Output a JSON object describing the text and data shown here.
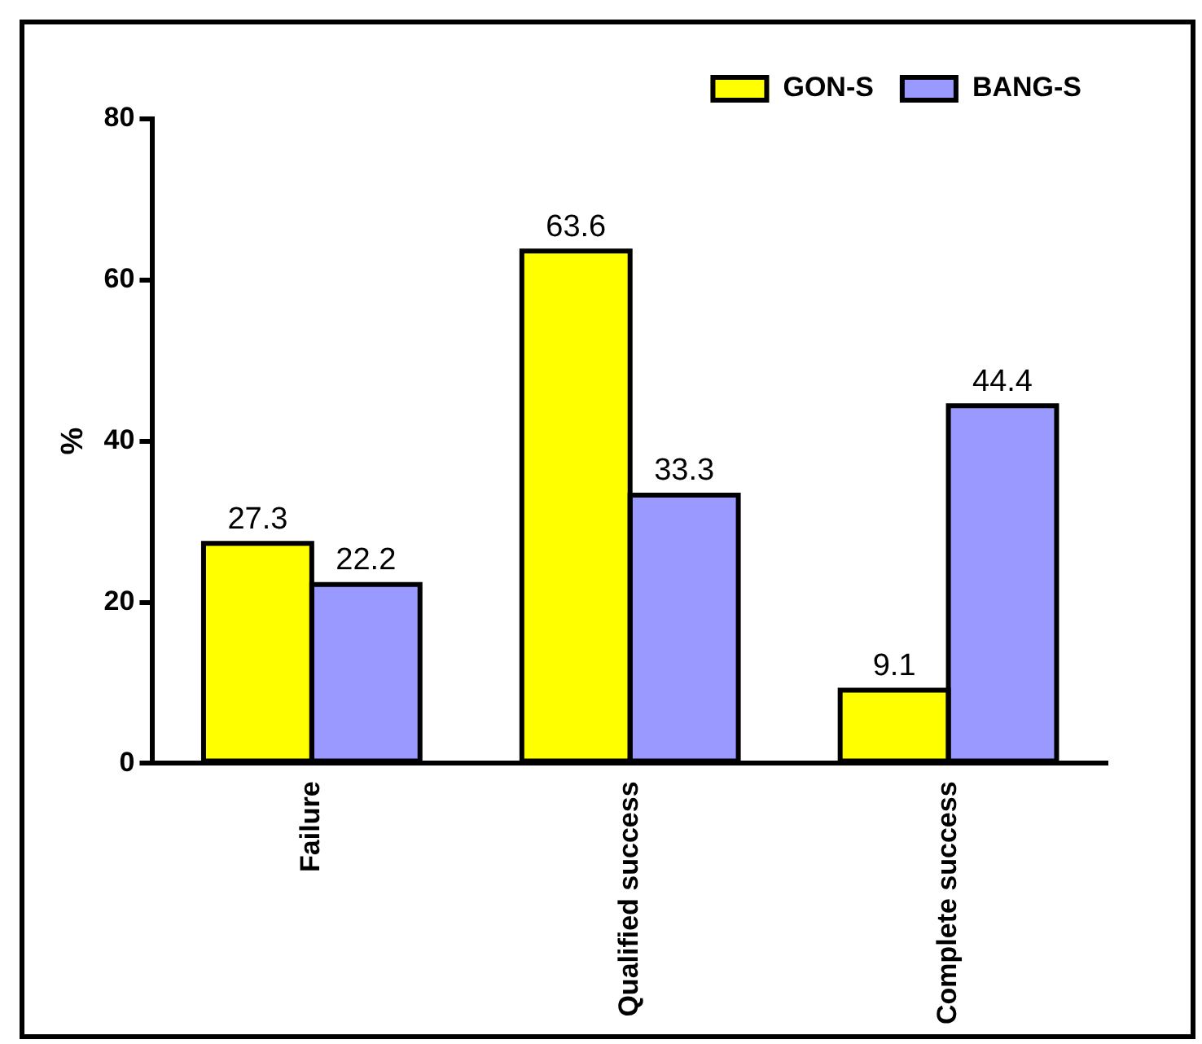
{
  "chart_data": {
    "type": "bar",
    "ylabel": "%",
    "categories": [
      "Failure",
      "Qualified success",
      "Complete success"
    ],
    "series": [
      {
        "name": "GON-S",
        "color": "#ffff00",
        "values": [
          27.3,
          63.6,
          9.1
        ]
      },
      {
        "name": "BANG-S",
        "color": "#9999ff",
        "values": [
          22.2,
          33.3,
          44.4
        ]
      }
    ],
    "ylim": [
      0,
      80
    ],
    "yticks": [
      0,
      20,
      40,
      60,
      80
    ],
    "grid": false,
    "legend": "top right",
    "data_labels": true
  }
}
